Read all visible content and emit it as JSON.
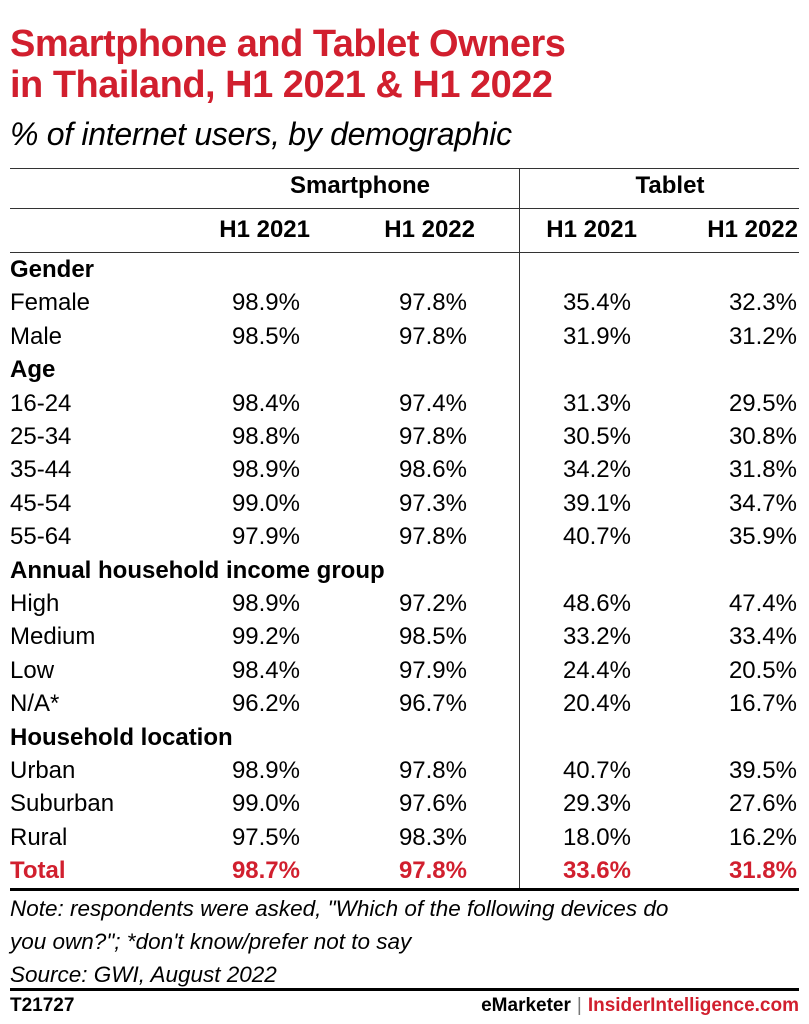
{
  "title_line1": "Smartphone and Tablet Owners",
  "title_line2": "in Thailand, H1 2021 & H1 2022",
  "subtitle": "% of internet users, by demographic",
  "chart_data": {
    "type": "table",
    "title": "Smartphone and Tablet Owners in Thailand, H1 2021 & H1 2022",
    "subtitle": "% of internet users, by demographic",
    "column_groups": [
      "Smartphone",
      "Tablet"
    ],
    "columns": [
      "H1 2021",
      "H1 2022",
      "H1 2021",
      "H1 2022"
    ],
    "rows": [
      {
        "label": "Gender",
        "section": true,
        "values": []
      },
      {
        "label": "Female",
        "values": [
          "98.9%",
          "97.8%",
          "35.4%",
          "32.3%"
        ]
      },
      {
        "label": "Male",
        "values": [
          "98.5%",
          "97.8%",
          "31.9%",
          "31.2%"
        ]
      },
      {
        "label": "Age",
        "section": true,
        "values": []
      },
      {
        "label": "16-24",
        "values": [
          "98.4%",
          "97.4%",
          "31.3%",
          "29.5%"
        ]
      },
      {
        "label": "25-34",
        "values": [
          "98.8%",
          "97.8%",
          "30.5%",
          "30.8%"
        ]
      },
      {
        "label": "35-44",
        "values": [
          "98.9%",
          "98.6%",
          "34.2%",
          "31.8%"
        ]
      },
      {
        "label": "45-54",
        "values": [
          "99.0%",
          "97.3%",
          "39.1%",
          "34.7%"
        ]
      },
      {
        "label": "55-64",
        "values": [
          "97.9%",
          "97.8%",
          "40.7%",
          "35.9%"
        ]
      },
      {
        "label": "Annual household income group",
        "section": true,
        "values": []
      },
      {
        "label": "High",
        "values": [
          "98.9%",
          "97.2%",
          "48.6%",
          "47.4%"
        ]
      },
      {
        "label": "Medium",
        "values": [
          "99.2%",
          "98.5%",
          "33.2%",
          "33.4%"
        ]
      },
      {
        "label": "Low",
        "values": [
          "98.4%",
          "97.9%",
          "24.4%",
          "20.5%"
        ]
      },
      {
        "label": "N/A*",
        "values": [
          "96.2%",
          "96.7%",
          "20.4%",
          "16.7%"
        ]
      },
      {
        "label": "Household location",
        "section": true,
        "values": []
      },
      {
        "label": "Urban",
        "values": [
          "98.9%",
          "97.8%",
          "40.7%",
          "39.5%"
        ]
      },
      {
        "label": "Suburban",
        "values": [
          "99.0%",
          "97.6%",
          "29.3%",
          "27.6%"
        ]
      },
      {
        "label": "Rural",
        "values": [
          "97.5%",
          "98.3%",
          "18.0%",
          "16.2%"
        ]
      },
      {
        "label": "Total",
        "total": true,
        "values": [
          "98.7%",
          "97.8%",
          "33.6%",
          "31.8%"
        ]
      }
    ]
  },
  "note_line1": "Note: respondents were asked, \"Which of the following devices do",
  "note_line2": "you own?\"; *don't know/prefer not to say",
  "source": "Source: GWI, August 2022",
  "footer": {
    "chart_id": "T21727",
    "brand1": "eMarketer",
    "separator": "|",
    "brand2": "InsiderIntelligence.com"
  },
  "colors": {
    "accent": "#d11f2e",
    "text": "#000000",
    "rule": "#333333"
  }
}
